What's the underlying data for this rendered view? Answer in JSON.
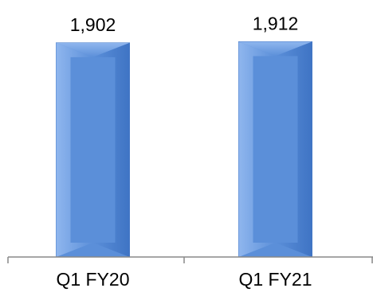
{
  "chart_data": {
    "type": "bar",
    "categories": [
      "Q1 FY20",
      "Q1 FY21"
    ],
    "values": [
      1902,
      1912
    ],
    "value_labels": [
      "1,902",
      "1,912"
    ],
    "title": "",
    "xlabel": "",
    "ylabel": "",
    "ylim": [
      0,
      2000
    ],
    "grid": false,
    "legend": "none",
    "colors": {
      "bar_fill": "#5b8fd9",
      "bar_light": "#8fb6ee",
      "bar_dark": "#3f74c4",
      "bar_edge": "#4a7cc8",
      "axis": "#888888"
    }
  }
}
